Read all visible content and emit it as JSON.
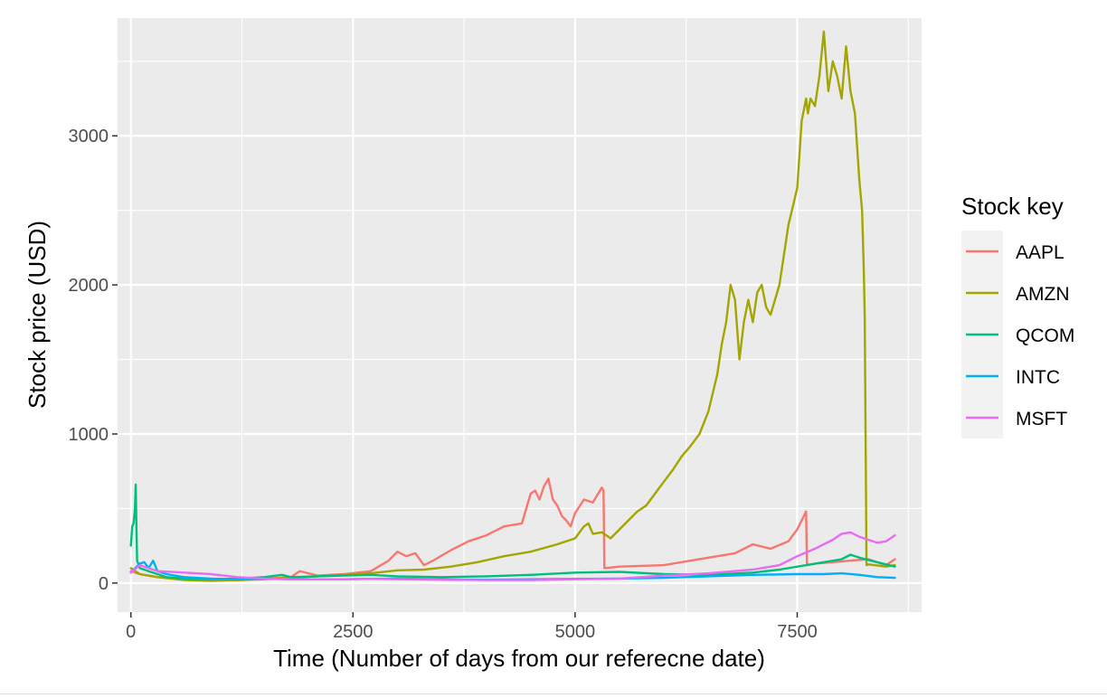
{
  "chart_data": {
    "type": "line",
    "title": "",
    "xlabel": "Time (Number of days from our referecne date)",
    "ylabel": "Stock price (USD)",
    "xlim": [
      -150,
      8900
    ],
    "ylim": [
      -195,
      3790
    ],
    "x_ticks": [
      0,
      2500,
      5000,
      7500
    ],
    "x_tick_labels": [
      "0",
      "2500",
      "5000",
      "7500"
    ],
    "y_ticks": [
      0,
      1000,
      2000,
      3000
    ],
    "y_tick_labels": [
      "0",
      "1000",
      "2000",
      "3000"
    ],
    "grid": true,
    "legend": {
      "title": "Stock key",
      "position": "right"
    },
    "series": [
      {
        "name": "AAPL",
        "color": "#F8766D",
        "x": [
          0,
          100,
          300,
          600,
          900,
          1200,
          1500,
          1800,
          1900,
          2100,
          2400,
          2700,
          2900,
          3000,
          3100,
          3200,
          3300,
          3400,
          3600,
          3800,
          4000,
          4200,
          4300,
          4400,
          4500,
          4550,
          4600,
          4650,
          4700,
          4750,
          4800,
          4850,
          4900,
          4950,
          5000,
          5100,
          5200,
          5300,
          5320,
          5330,
          5500,
          6000,
          6500,
          6800,
          7000,
          7200,
          7400,
          7500,
          7550,
          7600,
          7610,
          7700,
          7900,
          8100,
          8300,
          8500,
          8600
        ],
        "y": [
          80,
          60,
          40,
          25,
          20,
          18,
          30,
          40,
          80,
          50,
          60,
          80,
          150,
          210,
          180,
          200,
          120,
          150,
          220,
          280,
          320,
          380,
          390,
          400,
          600,
          620,
          560,
          650,
          700,
          560,
          520,
          450,
          420,
          380,
          470,
          560,
          540,
          640,
          620,
          100,
          110,
          120,
          170,
          200,
          260,
          230,
          280,
          360,
          420,
          480,
          120,
          130,
          140,
          150,
          160,
          120,
          160
        ]
      },
      {
        "name": "AMZN",
        "color": "#A3A500",
        "x": [
          0,
          100,
          300,
          600,
          900,
          1200,
          1500,
          1800,
          2100,
          2400,
          2700,
          3000,
          3300,
          3600,
          3900,
          4200,
          4500,
          4800,
          5000,
          5100,
          5150,
          5200,
          5300,
          5400,
          5500,
          5600,
          5700,
          5800,
          5900,
          6000,
          6100,
          6200,
          6300,
          6400,
          6500,
          6600,
          6650,
          6700,
          6750,
          6800,
          6850,
          6900,
          6950,
          7000,
          7050,
          7100,
          7150,
          7200,
          7300,
          7400,
          7500,
          7550,
          7600,
          7620,
          7650,
          7700,
          7750,
          7800,
          7850,
          7900,
          7950,
          8000,
          8050,
          8100,
          8150,
          8200,
          8230,
          8250,
          8260,
          8280,
          8300,
          8500,
          8600
        ],
        "y": [
          100,
          60,
          40,
          20,
          15,
          20,
          25,
          35,
          45,
          55,
          65,
          85,
          90,
          110,
          140,
          180,
          210,
          260,
          300,
          380,
          400,
          330,
          340,
          300,
          360,
          420,
          480,
          520,
          600,
          680,
          760,
          850,
          920,
          1000,
          1150,
          1400,
          1600,
          1750,
          2000,
          1900,
          1500,
          1750,
          1900,
          1750,
          1950,
          2000,
          1850,
          1800,
          2000,
          2400,
          2650,
          3100,
          3250,
          3150,
          3250,
          3200,
          3400,
          3700,
          3300,
          3500,
          3400,
          3250,
          3600,
          3300,
          3150,
          2700,
          2500,
          2100,
          1800,
          120,
          125,
          110,
          120
        ]
      },
      {
        "name": "QCOM",
        "color": "#00BF7D",
        "x": [
          0,
          15,
          30,
          45,
          55,
          60,
          70,
          100,
          150,
          200,
          300,
          400,
          600,
          900,
          1200,
          1500,
          1700,
          1800,
          2100,
          2400,
          2700,
          3000,
          3500,
          4000,
          4500,
          5000,
          5500,
          6000,
          6500,
          7000,
          7300,
          7600,
          7800,
          8000,
          8100,
          8200,
          8400,
          8600
        ],
        "y": [
          250,
          380,
          400,
          500,
          660,
          460,
          150,
          100,
          90,
          80,
          60,
          40,
          30,
          25,
          30,
          40,
          55,
          40,
          45,
          50,
          55,
          45,
          40,
          45,
          55,
          70,
          75,
          60,
          55,
          70,
          90,
          120,
          140,
          160,
          190,
          170,
          140,
          110
        ]
      },
      {
        "name": "INTC",
        "color": "#00B0F6",
        "x": [
          0,
          50,
          100,
          150,
          200,
          250,
          300,
          400,
          600,
          900,
          1200,
          1500,
          1800,
          2100,
          2400,
          2700,
          3000,
          3500,
          4000,
          4500,
          5000,
          5500,
          6000,
          6500,
          7000,
          7500,
          7800,
          8000,
          8200,
          8400,
          8600
        ],
        "y": [
          70,
          100,
          130,
          140,
          100,
          150,
          80,
          60,
          40,
          30,
          25,
          30,
          25,
          25,
          25,
          28,
          30,
          25,
          22,
          25,
          28,
          30,
          35,
          45,
          55,
          60,
          60,
          65,
          55,
          40,
          35
        ]
      },
      {
        "name": "MSFT",
        "color": "#E76BF3",
        "x": [
          0,
          100,
          300,
          600,
          900,
          1200,
          1500,
          1800,
          2100,
          2400,
          2700,
          3000,
          3500,
          4000,
          4500,
          5000,
          5500,
          6000,
          6500,
          7000,
          7300,
          7500,
          7700,
          7900,
          8000,
          8100,
          8200,
          8300,
          8400,
          8500,
          8600
        ],
        "y": [
          70,
          120,
          80,
          70,
          60,
          40,
          30,
          25,
          25,
          25,
          28,
          25,
          22,
          20,
          20,
          25,
          30,
          50,
          65,
          90,
          120,
          180,
          230,
          290,
          330,
          340,
          310,
          290,
          270,
          280,
          320
        ]
      }
    ]
  }
}
